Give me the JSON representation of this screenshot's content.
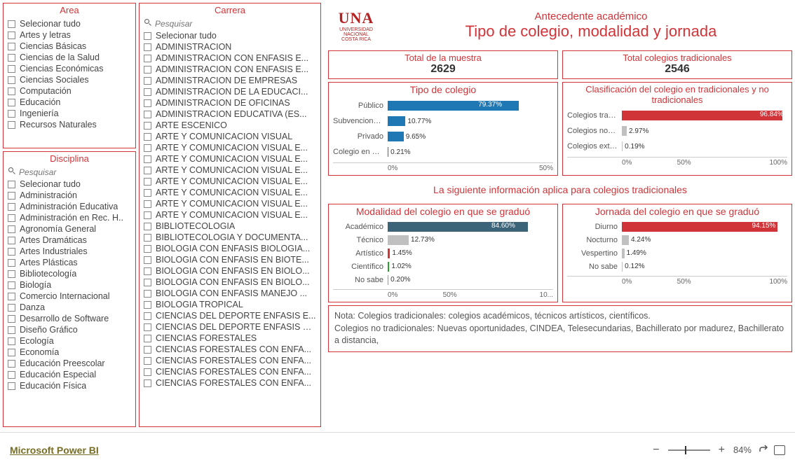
{
  "filters": {
    "area": {
      "title": "Area",
      "items": [
        "Selecionar tudo",
        "Artes y letras",
        "Ciencias Básicas",
        "Ciencias de la Salud",
        "Ciencias Económicas",
        "Ciencias Sociales",
        "Computación",
        "Educación",
        "Ingeniería",
        "Recursos Naturales"
      ]
    },
    "disciplina": {
      "title": "Disciplina",
      "search_placeholder": "Pesquisar",
      "items": [
        "Selecionar tudo",
        "Administración",
        "Administración Educativa",
        "Administración en Rec. H..",
        "Agronomía General",
        "Artes Dramáticas",
        "Artes Industriales",
        "Artes Plásticas",
        "Bibliotecología",
        "Biología",
        "Comercio Internacional",
        "Danza",
        "Desarrollo de Software",
        "Diseño Gráfico",
        "Ecología",
        "Economía",
        "Educación Preescolar",
        "Educación Especial",
        "Educación Física"
      ]
    },
    "carrera": {
      "title": "Carrera",
      "search_placeholder": "Pesquisar",
      "items": [
        "Selecionar tudo",
        "ADMINISTRACION",
        "ADMINISTRACION CON ENFASIS E...",
        "ADMINISTRACION CON ENFASIS E...",
        "ADMINISTRACION DE EMPRESAS",
        "ADMINISTRACION DE LA EDUCACI...",
        "ADMINISTRACION DE OFICINAS",
        "ADMINISTRACION EDUCATIVA (ES...",
        "ARTE ESCENICO",
        "ARTE Y COMUNICACION VISUAL",
        "ARTE Y COMUNICACION VISUAL E...",
        "ARTE Y COMUNICACION VISUAL E...",
        "ARTE Y COMUNICACION VISUAL E...",
        "ARTE Y COMUNICACION VISUAL E...",
        "ARTE Y COMUNICACION VISUAL E...",
        "ARTE Y COMUNICACION VISUAL E...",
        "ARTE Y COMUNICACION VISUAL E...",
        "BIBLIOTECOLOGIA",
        "BIBLIOTECOLOGIA Y DOCUMENTA...",
        "BIOLOGIA CON ENFASIS BIOLOGIA...",
        "BIOLOGIA CON ENFASIS EN BIOTE...",
        "BIOLOGIA CON ENFASIS EN BIOLO...",
        "BIOLOGIA CON ENFASIS EN BIOLO...",
        "BIOLOGIA CON ENFASIS MANEJO ...",
        "BIOLOGIA TROPICAL",
        "CIENCIAS DEL DEPORTE ENFASIS E...",
        "CIENCIAS DEL DEPORTE ENFASIS R...",
        "CIENCIAS FORESTALES",
        "CIENCIAS FORESTALES CON ENFA...",
        "CIENCIAS FORESTALES CON ENFA...",
        "CIENCIAS FORESTALES CON ENFA...",
        "CIENCIAS FORESTALES CON ENFA..."
      ]
    }
  },
  "header": {
    "logo_main": "UNA",
    "logo_sub1": "UNIVERSIDAD",
    "logo_sub2": "NACIONAL",
    "logo_sub3": "COSTA RICA",
    "title1": "Antecedente académico",
    "title2": "Tipo de colegio, modalidad y jornada"
  },
  "cards": {
    "muestra": {
      "label": "Total de la muestra",
      "value": "2629"
    },
    "tradicionales": {
      "label": "Total colegios tradicionales",
      "value": "2546"
    }
  },
  "charts": {
    "tipo_colegio": {
      "title": "Tipo de colegio",
      "color": "#1f77b4",
      "color_alt": "#2157a3",
      "axis": [
        "0%",
        "50%"
      ],
      "bars": [
        {
          "cat": "Público",
          "val": 79.37,
          "label": "79.37%",
          "inside": true
        },
        {
          "cat": "Subvencionado",
          "val": 10.77,
          "label": "10.77%"
        },
        {
          "cat": "Privado",
          "val": 9.65,
          "label": "9.65%"
        },
        {
          "cat": "Colegio en el e...",
          "val": 0.21,
          "label": "0.21%"
        }
      ]
    },
    "clasificacion": {
      "title": "Clasificación del colegio en tradicionales y no tradicionales",
      "color": "#d13438",
      "axis": [
        "0%",
        "50%",
        "100%"
      ],
      "bars": [
        {
          "cat": "Colegios tradic...",
          "val": 96.84,
          "label": "96.84%",
          "inside": true
        },
        {
          "cat": "Colegios no tra...",
          "val": 2.97,
          "label": "2.97%",
          "gray": true
        },
        {
          "cat": "Colegios extra...",
          "val": 0.19,
          "label": "0.19%",
          "gray": true
        }
      ]
    },
    "modalidad": {
      "title": "Modalidad del colegio en que se graduó",
      "axis": [
        "0%",
        "50%",
        "10..."
      ],
      "bars": [
        {
          "cat": "Académico",
          "val": 84.6,
          "label": "84.60%",
          "color": "#3c6478",
          "inside": true
        },
        {
          "cat": "Técnico",
          "val": 12.73,
          "label": "12.73%",
          "color": "#c0c0c0"
        },
        {
          "cat": "Artístico",
          "val": 1.45,
          "label": "1.45%",
          "color": "#d13438"
        },
        {
          "cat": "Científico",
          "val": 1.02,
          "label": "1.02%",
          "color": "#2ca02c"
        },
        {
          "cat": "No sabe",
          "val": 0.2,
          "label": "0.20%",
          "color": "#999"
        }
      ]
    },
    "jornada": {
      "title": "Jornada del colegio en que se graduó",
      "axis": [
        "0%",
        "50%",
        "100%"
      ],
      "bars": [
        {
          "cat": "Diurno",
          "val": 94.15,
          "label": "94.15%",
          "color": "#d13438",
          "inside": true
        },
        {
          "cat": "Nocturno",
          "val": 4.24,
          "label": "4.24%",
          "color": "#c0c0c0"
        },
        {
          "cat": "Vespertino",
          "val": 1.49,
          "label": "1.49%",
          "color": "#c0c0c0"
        },
        {
          "cat": "No sabe",
          "val": 0.12,
          "label": "0.12%",
          "color": "#c0c0c0"
        }
      ]
    }
  },
  "subtitle": "La siguiente información aplica para colegios tradicionales",
  "note": "Nota: Colegios tradicionales: colegios académicos, técnicos artísticos, científicos.\nColegios no tradicionales: Nuevas oportunidades, CINDEA, Telesecundarias, Bachillerato por madurez, Bachillerato a distancia,",
  "footer": {
    "brand": "Microsoft Power BI",
    "zoom": "84%"
  }
}
